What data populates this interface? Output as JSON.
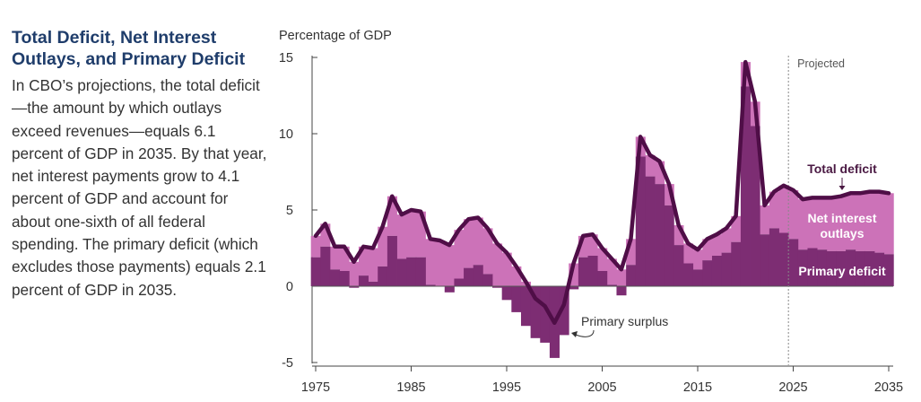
{
  "panel": {
    "title": "Total Deficit, Net Interest Outlays, and Primary Deficit",
    "description": "In CBO’s projections, the total deficit—the amount by which outlays exceed revenues—equals 6.1 percent of GDP in 2035. By that year, net interest payments grow to 4.1 percent of GDP and account for about one-sixth of all federal spending. The primary deficit (which excludes those payments) equals 2.1 percent of GDP in 2035."
  },
  "colors": {
    "net_interest": "#cc72b8",
    "primary": "#7d2d73",
    "total_line": "#4f0e47",
    "axis": "#444444",
    "projected_line": "#888888",
    "label_dark": "#4a1943",
    "label_white": "#ffffff"
  },
  "chart_data": {
    "type": "bar",
    "ylabel": "Percentage of GDP",
    "ylim": [
      -5,
      15
    ],
    "yticks": [
      -5,
      0,
      5,
      10,
      15
    ],
    "xticks": [
      1975,
      1985,
      1995,
      2005,
      2015,
      2025,
      2035
    ],
    "projected_label": "Projected",
    "projected_start": 2025,
    "x": [
      1975,
      1976,
      1977,
      1978,
      1979,
      1980,
      1981,
      1982,
      1983,
      1984,
      1985,
      1986,
      1987,
      1988,
      1989,
      1990,
      1991,
      1992,
      1993,
      1994,
      1995,
      1996,
      1997,
      1998,
      1999,
      2000,
      2001,
      2002,
      2003,
      2004,
      2005,
      2006,
      2007,
      2008,
      2009,
      2010,
      2011,
      2012,
      2013,
      2014,
      2015,
      2016,
      2017,
      2018,
      2019,
      2020,
      2021,
      2022,
      2023,
      2024,
      2025,
      2026,
      2027,
      2028,
      2029,
      2030,
      2031,
      2032,
      2033,
      2034,
      2035
    ],
    "series": [
      {
        "name": "Total deficit",
        "style": "line",
        "values": [
          3.3,
          4.1,
          2.6,
          2.6,
          1.6,
          2.6,
          2.5,
          3.9,
          5.9,
          4.7,
          5.0,
          4.9,
          3.1,
          3.0,
          2.7,
          3.7,
          4.4,
          4.5,
          3.8,
          2.8,
          2.2,
          1.3,
          0.3,
          -0.8,
          -1.3,
          -2.4,
          -1.2,
          1.5,
          3.3,
          3.4,
          2.5,
          1.8,
          1.1,
          3.1,
          9.8,
          8.6,
          8.2,
          6.7,
          4.0,
          2.8,
          2.4,
          3.1,
          3.4,
          3.8,
          4.6,
          14.7,
          12.1,
          5.3,
          6.2,
          6.6,
          6.3,
          5.7,
          5.8,
          5.8,
          5.8,
          5.9,
          6.1,
          6.1,
          6.2,
          6.2,
          6.1
        ]
      },
      {
        "name": "Net interest outlays",
        "style": "bar",
        "values": [
          1.4,
          1.5,
          1.5,
          1.6,
          1.7,
          1.9,
          2.2,
          2.6,
          2.6,
          2.9,
          3.1,
          3.0,
          3.0,
          3.0,
          3.1,
          3.2,
          3.2,
          3.1,
          3.0,
          2.9,
          3.1,
          3.0,
          2.9,
          2.6,
          2.4,
          2.3,
          2.0,
          1.7,
          1.4,
          1.4,
          1.5,
          1.7,
          1.7,
          1.7,
          1.3,
          1.4,
          1.5,
          1.4,
          1.3,
          1.3,
          1.3,
          1.4,
          1.4,
          1.6,
          1.7,
          1.6,
          1.6,
          1.9,
          2.4,
          3.1,
          3.2,
          3.3,
          3.3,
          3.4,
          3.5,
          3.6,
          3.7,
          3.8,
          3.9,
          4.0,
          4.1
        ]
      },
      {
        "name": "Primary deficit",
        "style": "bar",
        "values": [
          1.9,
          2.6,
          1.1,
          1.0,
          -0.1,
          0.7,
          0.3,
          1.3,
          3.3,
          1.8,
          1.9,
          1.9,
          0.1,
          0.0,
          -0.4,
          0.5,
          1.2,
          1.4,
          0.8,
          -0.1,
          -0.9,
          -1.7,
          -2.6,
          -3.4,
          -3.7,
          -4.7,
          -3.2,
          -0.2,
          1.9,
          2.0,
          1.0,
          0.1,
          -0.6,
          1.4,
          8.5,
          7.2,
          6.7,
          5.3,
          2.7,
          1.5,
          1.1,
          1.7,
          2.0,
          2.2,
          2.9,
          13.1,
          10.5,
          3.4,
          3.8,
          3.5,
          3.1,
          2.4,
          2.5,
          2.4,
          2.3,
          2.3,
          2.4,
          2.3,
          2.3,
          2.2,
          2.1
        ]
      }
    ],
    "annotations": {
      "total_deficit": "Total deficit",
      "net_interest_line1": "Net interest",
      "net_interest_line2": "outlays",
      "primary_deficit": "Primary deficit",
      "primary_surplus": "Primary surplus"
    }
  }
}
